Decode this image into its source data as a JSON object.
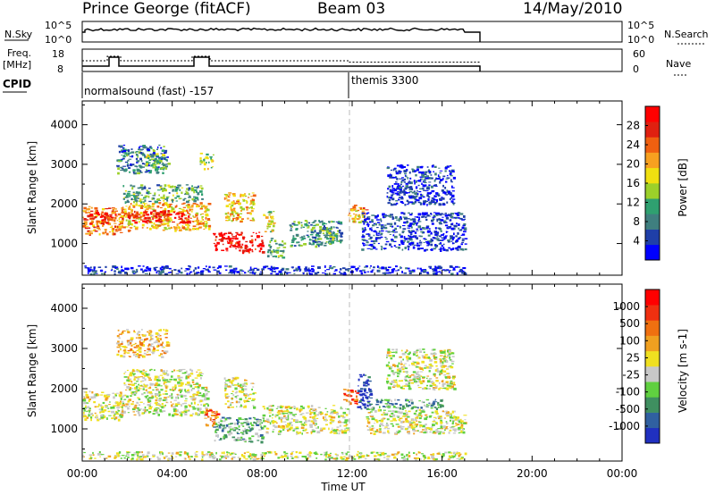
{
  "header": {
    "station": "Prince George (fitACF)",
    "beam": "Beam 03",
    "date": "14/May/2010"
  },
  "panels": {
    "nsky_label": "N.Sky",
    "nsky_top_tick": "10^5",
    "nsky_bottom_tick": "10^0",
    "nsearch_label": "N.Search",
    "freq_label_line1": "Freq.",
    "freq_label_line2": "[MHz]",
    "freq_ticks": [
      "18",
      "8"
    ],
    "nave_label": "Nave",
    "nave_ticks": [
      "60",
      "0"
    ],
    "cpid_label": "CPID",
    "cpid_1": "normalsound (fast) -157",
    "cpid_2": "themis 3300"
  },
  "chart_data": [
    {
      "type": "heatmap",
      "title": "Power",
      "ylabel": "Slant Range [km]",
      "xlabel": "Time UT",
      "y_ticks": [
        "1000",
        "2000",
        "3000",
        "4000"
      ],
      "ylim": [
        200,
        4600
      ],
      "x_ticks": [
        "00:00",
        "04:00",
        "08:00",
        "12:00",
        "16:00",
        "20:00",
        "00:00"
      ],
      "x_hours": [
        0,
        4,
        8,
        12,
        16,
        20,
        24
      ],
      "colorbar_label": "Power [dB]",
      "colorbar_ticks": [
        "4",
        "8",
        "12",
        "16",
        "20",
        "24",
        "28"
      ],
      "colorbar_colors": [
        "#0000ff",
        "#1f3fa8",
        "#3f7f7f",
        "#2fa070",
        "#9cd02a",
        "#f0e010",
        "#f7a020",
        "#f06010",
        "#e02010",
        "#ff0000"
      ],
      "blobs": [
        {
          "t0": 0.0,
          "t1": 1.8,
          "r0": 1250,
          "r1": 1950,
          "lvl": 0.72
        },
        {
          "t0": 0.3,
          "t1": 1.5,
          "r0": 1500,
          "r1": 1800,
          "lvl": 0.88
        },
        {
          "t0": 1.6,
          "t1": 5.6,
          "r0": 1350,
          "r1": 2050,
          "lvl": 0.62
        },
        {
          "t0": 2.0,
          "t1": 4.8,
          "r0": 1550,
          "r1": 1850,
          "lvl": 0.9
        },
        {
          "t0": 1.8,
          "t1": 5.3,
          "r0": 2050,
          "r1": 2500,
          "lvl": 0.35
        },
        {
          "t0": 1.5,
          "t1": 3.8,
          "r0": 2800,
          "r1": 3500,
          "lvl": 0.25
        },
        {
          "t0": 2.8,
          "t1": 3.6,
          "r0": 2900,
          "r1": 3300,
          "lvl": 0.45
        },
        {
          "t0": 5.2,
          "t1": 5.8,
          "r0": 2900,
          "r1": 3300,
          "lvl": 0.45
        },
        {
          "t0": 5.8,
          "t1": 8.0,
          "r0": 800,
          "r1": 1300,
          "lvl": 0.95
        },
        {
          "t0": 6.3,
          "t1": 7.6,
          "r0": 1550,
          "r1": 2300,
          "lvl": 0.6
        },
        {
          "t0": 8.0,
          "t1": 8.5,
          "r0": 1300,
          "r1": 1900,
          "lvl": 0.5
        },
        {
          "t0": 8.2,
          "t1": 9.0,
          "r0": 650,
          "r1": 1150,
          "lvl": 0.38
        },
        {
          "t0": 9.2,
          "t1": 11.5,
          "r0": 950,
          "r1": 1600,
          "lvl": 0.3
        },
        {
          "t0": 10.5,
          "t1": 11.3,
          "r0": 1050,
          "r1": 1350,
          "lvl": 0.4
        },
        {
          "t0": 11.8,
          "t1": 12.6,
          "r0": 1550,
          "r1": 2000,
          "lvl": 0.65
        },
        {
          "t0": 12.4,
          "t1": 17.0,
          "r0": 850,
          "r1": 1800,
          "lvl": 0.12
        },
        {
          "t0": 13.5,
          "t1": 16.5,
          "r0": 2000,
          "r1": 3000,
          "lvl": 0.1
        },
        {
          "t0": 0.0,
          "t1": 17.0,
          "r0": 250,
          "r1": 450,
          "lvl": 0.08
        }
      ]
    },
    {
      "type": "heatmap",
      "title": "Velocity",
      "ylabel": "Slant Range [km]",
      "xlabel": "Time UT",
      "y_ticks": [
        "1000",
        "2000",
        "3000",
        "4000"
      ],
      "ylim": [
        200,
        4600
      ],
      "x_ticks": [
        "00:00",
        "04:00",
        "08:00",
        "12:00",
        "16:00",
        "20:00",
        "00:00"
      ],
      "x_hours": [
        0,
        4,
        8,
        12,
        16,
        20,
        24
      ],
      "colorbar_label": "Velocity [m s-1]",
      "colorbar_ticks": [
        "1000",
        "500",
        "100",
        "25",
        "-25",
        "-100",
        "-500",
        "-1000"
      ],
      "colorbar_colors": [
        "#2030c0",
        "#3060a0",
        "#3f8f60",
        "#60d040",
        "#c8c8c8",
        "#f0e020",
        "#f0a020",
        "#f07010",
        "#f03010",
        "#ff0000"
      ],
      "blobs": [
        {
          "t0": 0.0,
          "t1": 1.8,
          "r0": 1250,
          "r1": 1950,
          "lvl": 0.48
        },
        {
          "t0": 1.6,
          "t1": 5.6,
          "r0": 1350,
          "r1": 2050,
          "lvl": 0.48
        },
        {
          "t0": 1.8,
          "t1": 5.3,
          "r0": 2050,
          "r1": 2500,
          "lvl": 0.48
        },
        {
          "t0": 1.5,
          "t1": 3.8,
          "r0": 2800,
          "r1": 3500,
          "lvl": 0.6
        },
        {
          "t0": 5.8,
          "t1": 8.0,
          "r0": 700,
          "r1": 1300,
          "lvl": 0.3
        },
        {
          "t0": 5.4,
          "t1": 6.0,
          "r0": 1100,
          "r1": 1500,
          "lvl": 0.75
        },
        {
          "t0": 6.3,
          "t1": 7.6,
          "r0": 1550,
          "r1": 2300,
          "lvl": 0.48
        },
        {
          "t0": 8.0,
          "t1": 11.8,
          "r0": 900,
          "r1": 1600,
          "lvl": 0.48
        },
        {
          "t0": 11.6,
          "t1": 12.2,
          "r0": 1600,
          "r1": 2000,
          "lvl": 0.8
        },
        {
          "t0": 12.2,
          "t1": 12.8,
          "r0": 1500,
          "r1": 2400,
          "lvl": 0.05
        },
        {
          "t0": 12.8,
          "t1": 16.0,
          "r0": 1500,
          "r1": 1750,
          "lvl": 0.3
        },
        {
          "t0": 12.6,
          "t1": 17.0,
          "r0": 900,
          "r1": 1500,
          "lvl": 0.48
        },
        {
          "t0": 13.5,
          "t1": 16.5,
          "r0": 2000,
          "r1": 3000,
          "lvl": 0.48
        },
        {
          "t0": 0.0,
          "t1": 17.0,
          "r0": 250,
          "r1": 450,
          "lvl": 0.48
        }
      ]
    }
  ]
}
